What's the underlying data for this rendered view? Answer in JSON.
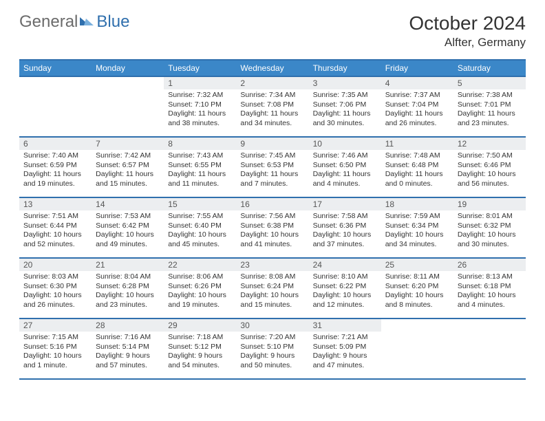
{
  "brand": {
    "general": "General",
    "blue": "Blue"
  },
  "title": "October 2024",
  "location": "Alfter, Germany",
  "colors": {
    "header_bg": "#3b87c8",
    "border": "#2f6fad",
    "daynum_bg": "#eceef0",
    "text": "#333333"
  },
  "weekdays": [
    "Sunday",
    "Monday",
    "Tuesday",
    "Wednesday",
    "Thursday",
    "Friday",
    "Saturday"
  ],
  "weeks": [
    [
      null,
      null,
      {
        "n": "1",
        "sr": "Sunrise: 7:32 AM",
        "ss": "Sunset: 7:10 PM",
        "dl": "Daylight: 11 hours and 38 minutes."
      },
      {
        "n": "2",
        "sr": "Sunrise: 7:34 AM",
        "ss": "Sunset: 7:08 PM",
        "dl": "Daylight: 11 hours and 34 minutes."
      },
      {
        "n": "3",
        "sr": "Sunrise: 7:35 AM",
        "ss": "Sunset: 7:06 PM",
        "dl": "Daylight: 11 hours and 30 minutes."
      },
      {
        "n": "4",
        "sr": "Sunrise: 7:37 AM",
        "ss": "Sunset: 7:04 PM",
        "dl": "Daylight: 11 hours and 26 minutes."
      },
      {
        "n": "5",
        "sr": "Sunrise: 7:38 AM",
        "ss": "Sunset: 7:01 PM",
        "dl": "Daylight: 11 hours and 23 minutes."
      }
    ],
    [
      {
        "n": "6",
        "sr": "Sunrise: 7:40 AM",
        "ss": "Sunset: 6:59 PM",
        "dl": "Daylight: 11 hours and 19 minutes."
      },
      {
        "n": "7",
        "sr": "Sunrise: 7:42 AM",
        "ss": "Sunset: 6:57 PM",
        "dl": "Daylight: 11 hours and 15 minutes."
      },
      {
        "n": "8",
        "sr": "Sunrise: 7:43 AM",
        "ss": "Sunset: 6:55 PM",
        "dl": "Daylight: 11 hours and 11 minutes."
      },
      {
        "n": "9",
        "sr": "Sunrise: 7:45 AM",
        "ss": "Sunset: 6:53 PM",
        "dl": "Daylight: 11 hours and 7 minutes."
      },
      {
        "n": "10",
        "sr": "Sunrise: 7:46 AM",
        "ss": "Sunset: 6:50 PM",
        "dl": "Daylight: 11 hours and 4 minutes."
      },
      {
        "n": "11",
        "sr": "Sunrise: 7:48 AM",
        "ss": "Sunset: 6:48 PM",
        "dl": "Daylight: 11 hours and 0 minutes."
      },
      {
        "n": "12",
        "sr": "Sunrise: 7:50 AM",
        "ss": "Sunset: 6:46 PM",
        "dl": "Daylight: 10 hours and 56 minutes."
      }
    ],
    [
      {
        "n": "13",
        "sr": "Sunrise: 7:51 AM",
        "ss": "Sunset: 6:44 PM",
        "dl": "Daylight: 10 hours and 52 minutes."
      },
      {
        "n": "14",
        "sr": "Sunrise: 7:53 AM",
        "ss": "Sunset: 6:42 PM",
        "dl": "Daylight: 10 hours and 49 minutes."
      },
      {
        "n": "15",
        "sr": "Sunrise: 7:55 AM",
        "ss": "Sunset: 6:40 PM",
        "dl": "Daylight: 10 hours and 45 minutes."
      },
      {
        "n": "16",
        "sr": "Sunrise: 7:56 AM",
        "ss": "Sunset: 6:38 PM",
        "dl": "Daylight: 10 hours and 41 minutes."
      },
      {
        "n": "17",
        "sr": "Sunrise: 7:58 AM",
        "ss": "Sunset: 6:36 PM",
        "dl": "Daylight: 10 hours and 37 minutes."
      },
      {
        "n": "18",
        "sr": "Sunrise: 7:59 AM",
        "ss": "Sunset: 6:34 PM",
        "dl": "Daylight: 10 hours and 34 minutes."
      },
      {
        "n": "19",
        "sr": "Sunrise: 8:01 AM",
        "ss": "Sunset: 6:32 PM",
        "dl": "Daylight: 10 hours and 30 minutes."
      }
    ],
    [
      {
        "n": "20",
        "sr": "Sunrise: 8:03 AM",
        "ss": "Sunset: 6:30 PM",
        "dl": "Daylight: 10 hours and 26 minutes."
      },
      {
        "n": "21",
        "sr": "Sunrise: 8:04 AM",
        "ss": "Sunset: 6:28 PM",
        "dl": "Daylight: 10 hours and 23 minutes."
      },
      {
        "n": "22",
        "sr": "Sunrise: 8:06 AM",
        "ss": "Sunset: 6:26 PM",
        "dl": "Daylight: 10 hours and 19 minutes."
      },
      {
        "n": "23",
        "sr": "Sunrise: 8:08 AM",
        "ss": "Sunset: 6:24 PM",
        "dl": "Daylight: 10 hours and 15 minutes."
      },
      {
        "n": "24",
        "sr": "Sunrise: 8:10 AM",
        "ss": "Sunset: 6:22 PM",
        "dl": "Daylight: 10 hours and 12 minutes."
      },
      {
        "n": "25",
        "sr": "Sunrise: 8:11 AM",
        "ss": "Sunset: 6:20 PM",
        "dl": "Daylight: 10 hours and 8 minutes."
      },
      {
        "n": "26",
        "sr": "Sunrise: 8:13 AM",
        "ss": "Sunset: 6:18 PM",
        "dl": "Daylight: 10 hours and 4 minutes."
      }
    ],
    [
      {
        "n": "27",
        "sr": "Sunrise: 7:15 AM",
        "ss": "Sunset: 5:16 PM",
        "dl": "Daylight: 10 hours and 1 minute."
      },
      {
        "n": "28",
        "sr": "Sunrise: 7:16 AM",
        "ss": "Sunset: 5:14 PM",
        "dl": "Daylight: 9 hours and 57 minutes."
      },
      {
        "n": "29",
        "sr": "Sunrise: 7:18 AM",
        "ss": "Sunset: 5:12 PM",
        "dl": "Daylight: 9 hours and 54 minutes."
      },
      {
        "n": "30",
        "sr": "Sunrise: 7:20 AM",
        "ss": "Sunset: 5:10 PM",
        "dl": "Daylight: 9 hours and 50 minutes."
      },
      {
        "n": "31",
        "sr": "Sunrise: 7:21 AM",
        "ss": "Sunset: 5:09 PM",
        "dl": "Daylight: 9 hours and 47 minutes."
      },
      null,
      null
    ]
  ]
}
